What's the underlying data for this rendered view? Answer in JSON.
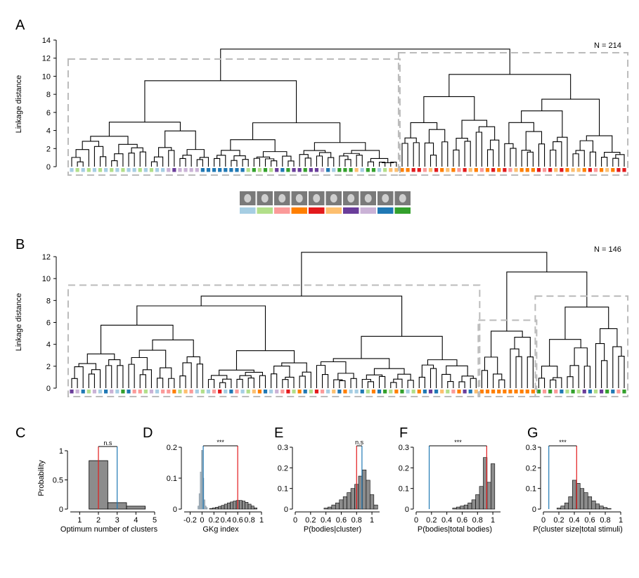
{
  "colors": {
    "c1": "#a6cee3",
    "c2": "#b2df8a",
    "c3": "#fb9a99",
    "c4": "#ff7f00",
    "c5": "#e31a1c",
    "c6": "#fdbf6f",
    "c7": "#6a3d9a",
    "c8": "#cab2d6",
    "c9": "#1f78b4",
    "c10": "#33a02c",
    "red_line": "#e31a1c",
    "blue_line": "#1f78b4",
    "bar_dark": "#777777",
    "bar_light": "#a9b6c0",
    "dash": "#bbbbbb"
  },
  "legend_icons": [
    "face-icon",
    "hand-icon",
    "body-icon",
    "figure-icon",
    "animal-icon",
    "tool-icon",
    "vehicle-icon",
    "fruit-icon",
    "bottle-icon",
    "shell-icon"
  ],
  "chart_data": [
    {
      "panel": "A",
      "type": "dendrogram",
      "ylabel": "Linkage distance",
      "ylim": [
        0,
        14
      ],
      "yticks": [
        "0",
        "2",
        "4",
        "6",
        "8",
        "10",
        "12",
        "14"
      ],
      "annotation": "N = 214",
      "n_leaves": 98,
      "root_height": 13.0,
      "clusters": 2
    },
    {
      "panel": "B",
      "type": "dendrogram",
      "ylabel": "Linkage distance",
      "ylim": [
        0,
        12
      ],
      "yticks": [
        "0",
        "2",
        "4",
        "6",
        "8",
        "10",
        "12"
      ],
      "annotation": "N = 146",
      "n_leaves": 98,
      "root_height": 12.4,
      "clusters": 4
    },
    {
      "panel": "C",
      "type": "bar",
      "ylabel": "Probability",
      "xlabel": "Optimum number of clusters",
      "categories": [
        "2",
        "3",
        "4"
      ],
      "values": [
        0.83,
        0.11,
        0.05
      ],
      "xlim": [
        0.5,
        5
      ],
      "xticks": [
        "1",
        "2",
        "3",
        "4",
        "5"
      ],
      "ylim": [
        0,
        1
      ],
      "yticks": [
        "0",
        "0.5",
        "1"
      ],
      "red_line": 2,
      "blue_line": 3,
      "significance": "n.s"
    },
    {
      "panel": "D",
      "type": "histogram",
      "xlabel": "GKg index",
      "xlim": [
        -0.3,
        1.0
      ],
      "xticks": [
        "-0.2",
        "0",
        "0.2",
        "0.4",
        "0.6",
        "0.8",
        "1"
      ],
      "ylim": [
        0,
        0.2
      ],
      "yticks": [
        "0",
        "0.1",
        "0.2"
      ],
      "series": [
        {
          "x": [
            -0.06,
            -0.04,
            -0.02,
            0.0,
            0.02,
            0.04,
            0.06,
            0.08
          ],
          "values": [
            0.01,
            0.05,
            0.12,
            0.19,
            0.1,
            0.03,
            0.01,
            0.005
          ]
        },
        {
          "x": [
            0.15,
            0.2,
            0.25,
            0.3,
            0.35,
            0.4,
            0.45,
            0.5,
            0.55,
            0.6,
            0.65,
            0.7,
            0.75,
            0.8,
            0.85,
            0.9
          ],
          "values": [
            0.002,
            0.004,
            0.006,
            0.009,
            0.012,
            0.016,
            0.02,
            0.023,
            0.026,
            0.028,
            0.028,
            0.026,
            0.022,
            0.016,
            0.01,
            0.004
          ]
        }
      ],
      "red_line": 0.6,
      "blue_line": 0.02,
      "significance": "***"
    },
    {
      "panel": "E",
      "type": "histogram",
      "xlabel": "P(bodies|cluster)",
      "xlim": [
        0,
        1.1
      ],
      "xticks": [
        "0",
        "0.2",
        "0.4",
        "0.6",
        "0.8",
        "1"
      ],
      "ylim": [
        0,
        0.3
      ],
      "yticks": [
        "0",
        "0.1",
        "0.2",
        "0.3"
      ],
      "x": [
        0.4,
        0.45,
        0.5,
        0.55,
        0.6,
        0.65,
        0.7,
        0.75,
        0.8,
        0.85,
        0.9,
        0.95,
        1.0,
        1.05
      ],
      "values": [
        0.005,
        0.01,
        0.02,
        0.03,
        0.045,
        0.06,
        0.08,
        0.1,
        0.12,
        0.16,
        0.19,
        0.14,
        0.07,
        0.02
      ],
      "red_line": 0.8,
      "blue_line": 0.87,
      "significance": "n.s"
    },
    {
      "panel": "F",
      "type": "histogram",
      "xlabel": "P(bodies|total bodies)",
      "xlim": [
        0,
        1.1
      ],
      "xticks": [
        "0",
        "0.2",
        "0.4",
        "0.6",
        "0.8",
        "1"
      ],
      "ylim": [
        0,
        0.3
      ],
      "yticks": [
        "0",
        "0.1",
        "0.2",
        "0.3"
      ],
      "x": [
        0.5,
        0.55,
        0.6,
        0.65,
        0.7,
        0.75,
        0.8,
        0.85,
        0.9,
        0.95,
        1.0
      ],
      "values": [
        0.005,
        0.01,
        0.015,
        0.02,
        0.03,
        0.045,
        0.07,
        0.11,
        0.25,
        0.13,
        0.22
      ],
      "red_line": 0.92,
      "blue_line": 0.17,
      "significance": "***"
    },
    {
      "panel": "G",
      "type": "histogram",
      "xlabel": "P(cluster size|total stimuli)",
      "xlim": [
        0,
        1.0
      ],
      "xticks": [
        "0",
        "0.2",
        "0.4",
        "0.6",
        "0.8",
        "1"
      ],
      "ylim": [
        0,
        0.3
      ],
      "yticks": [
        "0",
        "0.1",
        "0.2",
        "0.3"
      ],
      "x": [
        0.2,
        0.25,
        0.3,
        0.35,
        0.4,
        0.45,
        0.5,
        0.55,
        0.6,
        0.65,
        0.7,
        0.75,
        0.8,
        0.85
      ],
      "values": [
        0.005,
        0.015,
        0.03,
        0.06,
        0.14,
        0.125,
        0.1,
        0.08,
        0.06,
        0.04,
        0.025,
        0.015,
        0.008,
        0.003
      ],
      "red_line": 0.43,
      "blue_line": 0.07,
      "significance": "***"
    }
  ],
  "panel_labels": [
    "A",
    "B",
    "C",
    "D",
    "E",
    "F",
    "G"
  ]
}
